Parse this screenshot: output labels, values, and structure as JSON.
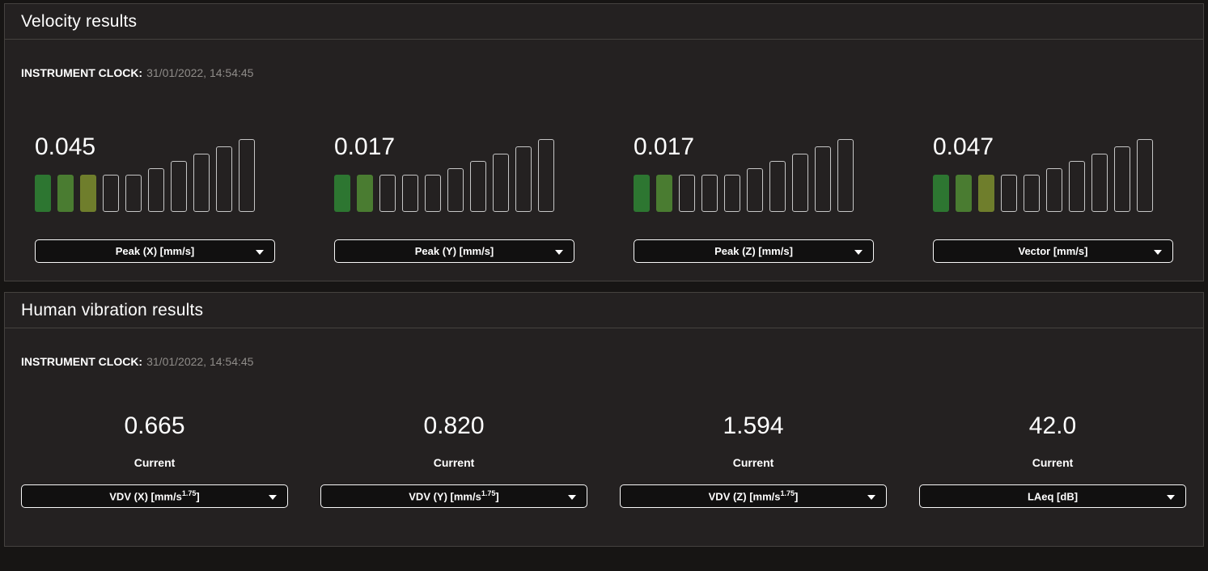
{
  "velocity": {
    "title": "Velocity results",
    "clock_label": "INSTRUMENT CLOCK:",
    "clock_value": "31/01/2022, 14:54:45",
    "gauges": [
      {
        "value": "0.045",
        "filled_segments": 3,
        "selector": "Peak (X) [mm/s]"
      },
      {
        "value": "0.017",
        "filled_segments": 2,
        "selector": "Peak (Y) [mm/s]"
      },
      {
        "value": "0.017",
        "filled_segments": 2,
        "selector": "Peak (Z) [mm/s]"
      },
      {
        "value": "0.047",
        "filled_segments": 3,
        "selector": "Vector [mm/s]"
      }
    ]
  },
  "human_vibration": {
    "title": "Human vibration results",
    "clock_label": "INSTRUMENT CLOCK:",
    "clock_value": "31/01/2022, 14:54:45",
    "metrics": [
      {
        "value": "0.665",
        "label": "Current",
        "selector_pre": "VDV (X) [mm/s",
        "selector_sup": "1.75",
        "selector_post": "]"
      },
      {
        "value": "0.820",
        "label": "Current",
        "selector_pre": "VDV (Y) [mm/s",
        "selector_sup": "1.75",
        "selector_post": "]"
      },
      {
        "value": "1.594",
        "label": "Current",
        "selector_pre": "VDV (Z) [mm/s",
        "selector_sup": "1.75",
        "selector_post": "]"
      },
      {
        "value": "42.0",
        "label": "Current",
        "selector_pre": "LAeq [dB]",
        "selector_sup": "",
        "selector_post": ""
      }
    ]
  },
  "gauge_style": {
    "segment_count": 10,
    "segment_heights": [
      46,
      46,
      46,
      46,
      46,
      54,
      63,
      72,
      81,
      90
    ],
    "filled_colors": [
      "#2d7631",
      "#4a7c31",
      "#6f7e2c"
    ],
    "empty_border_color": "#c6c6c6"
  },
  "colors": {
    "page_background": "#171514",
    "panel_background": "#242121",
    "panel_border": "#45423f",
    "text_primary": "#ffffff",
    "text_secondary": "#8f8c89",
    "dropdown_background": "#111010",
    "dropdown_border": "#f8f8f8"
  }
}
